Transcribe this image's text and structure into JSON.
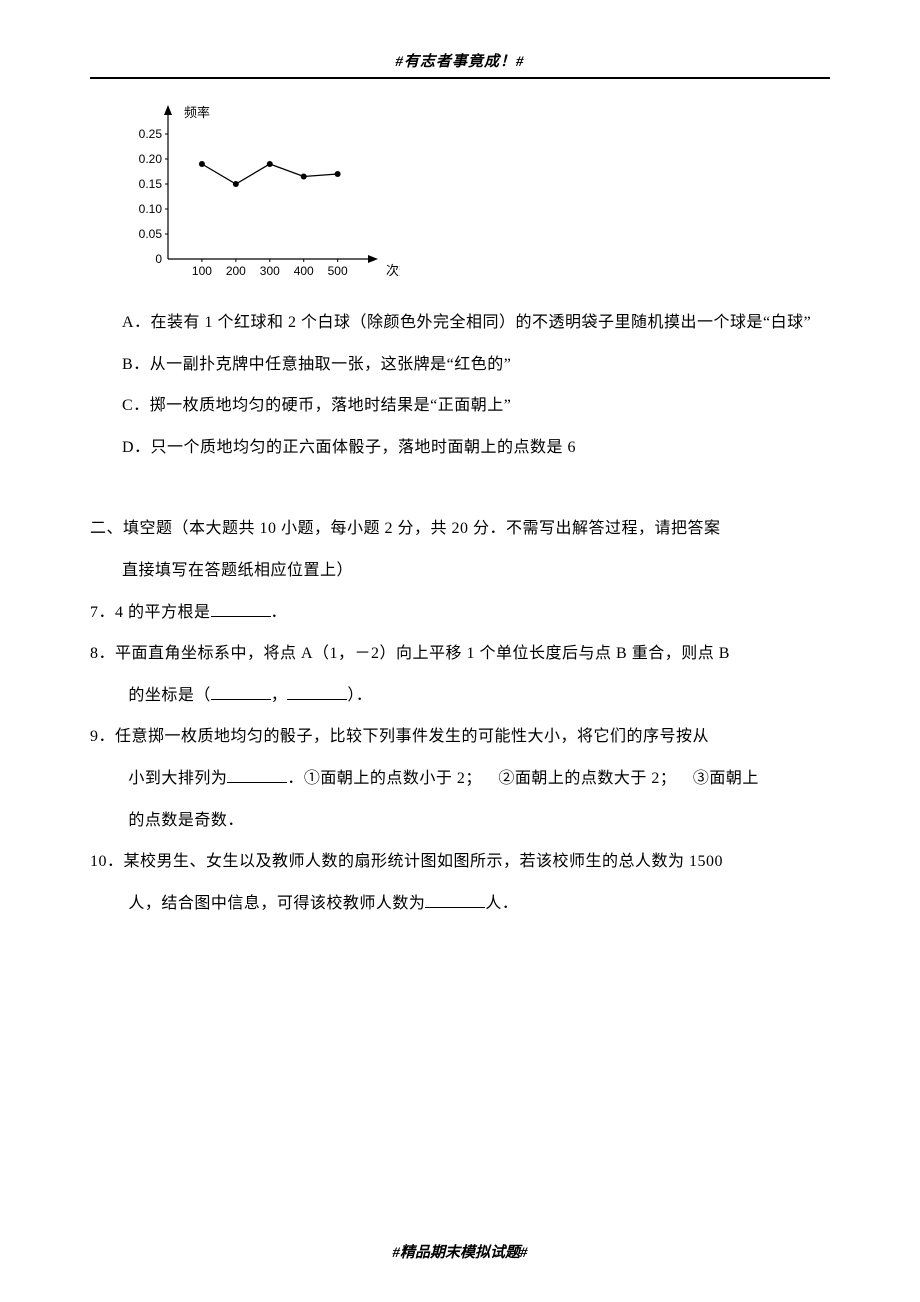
{
  "header": "#有志者事竟成！#",
  "footer": "#精品期末模拟试题#",
  "chart": {
    "type": "line",
    "y_axis_label": "频率",
    "x_axis_label": "次数",
    "y_ticks": [
      0,
      0.05,
      0.1,
      0.15,
      0.2,
      0.25
    ],
    "y_tick_labels": [
      "0",
      "0.05",
      "0.10",
      "0.15",
      "0.20",
      "0.25"
    ],
    "x_ticks": [
      100,
      200,
      300,
      400,
      500
    ],
    "x_tick_labels": [
      "100",
      "200",
      "300",
      "400",
      "500"
    ],
    "ylim": [
      0,
      0.28
    ],
    "xlim": [
      0,
      560
    ],
    "points": [
      {
        "x": 100,
        "y": 0.19
      },
      {
        "x": 200,
        "y": 0.15
      },
      {
        "x": 300,
        "y": 0.19
      },
      {
        "x": 400,
        "y": 0.165
      },
      {
        "x": 500,
        "y": 0.17
      }
    ],
    "line_color": "#000000",
    "line_width": 1.3,
    "marker_style": "circle",
    "marker_size": 3,
    "marker_color": "#000000",
    "background_color": "#ffffff",
    "axis_color": "#000000",
    "axis_width": 1.2,
    "grid": false,
    "y_label_fontsize": 13,
    "x_label_fontsize": 13,
    "tick_fontsize": 12
  },
  "options": {
    "A": "A．在装有 1 个红球和 2 个白球（除颜色外完全相同）的不透明袋子里随机摸出一个球是“白球”",
    "B": "B．从一副扑克牌中任意抽取一张，这张牌是“红色的”",
    "C": "C．掷一枚质地均匀的硬币，落地时结果是“正面朝上”",
    "D": "D．只一个质地均匀的正六面体骰子，落地时面朝上的点数是 6"
  },
  "section2": {
    "title_line1": "二、填空题（本大题共 10 小题，每小题 2 分，共 20 分．不需写出解答过程，请把答案",
    "title_line2": "直接填写在答题纸相应位置上）"
  },
  "q7": {
    "prefix": "7．4 的平方根是",
    "suffix": "．"
  },
  "q8": {
    "line1_prefix": "8．平面直角坐标系中，将点 A（1，－2）向上平移 1 个单位长度后与点 B 重合，则点 B",
    "line2_prefix": "的坐标是（",
    "line2_mid": "，",
    "line2_suffix": "）．"
  },
  "q9": {
    "line1": "9．任意掷一枚质地均匀的骰子，比较下列事件发生的可能性大小，将它们的序号按从",
    "line2_prefix": "小到大排列为",
    "line2_suffix": "．①面朝上的点数小于 2； ②面朝上的点数大于 2； ③面朝上",
    "line3": "的点数是奇数．"
  },
  "q10": {
    "line1": "10．某校男生、女生以及教师人数的扇形统计图如图所示，若该校师生的总人数为 1500",
    "line2_prefix": "人，结合图中信息，可得该校教师人数为",
    "line2_suffix": "人．"
  }
}
